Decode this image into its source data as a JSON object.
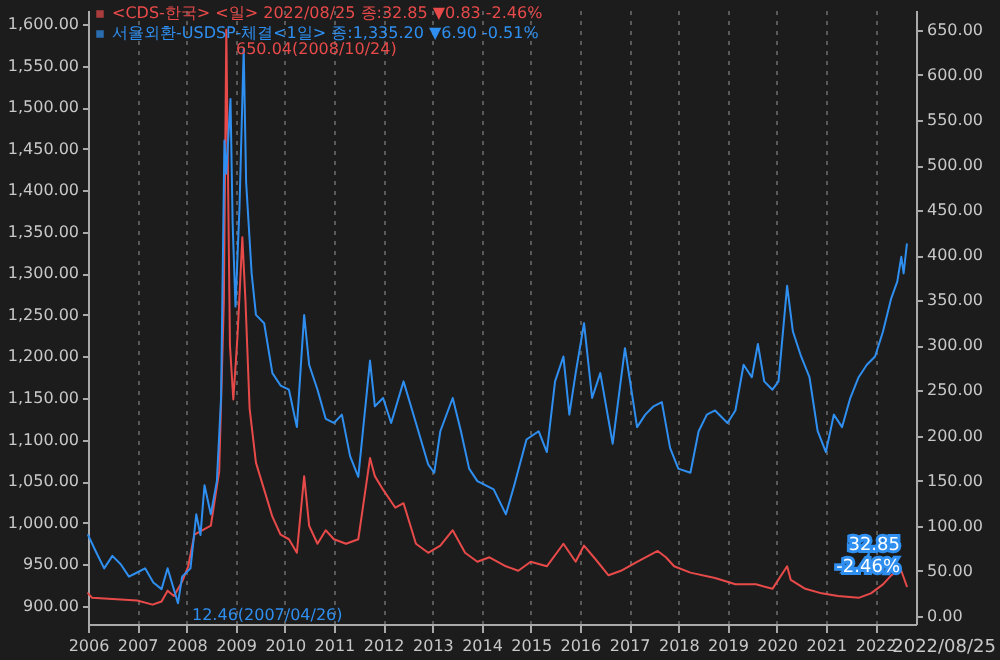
{
  "chart_data": {
    "type": "line",
    "series": [
      {
        "name": "<CDS-한국> <일> 2022/08/25 종:32.85 ▼0.83 -2.46%",
        "color": "#e84a4a",
        "axis": "y2",
        "x": [
          "2006-01-02",
          "2006-02-01",
          "2006-06-01",
          "2006-10-01",
          "2007-01-01",
          "2007-04-26",
          "2007-07-01",
          "2007-08-15",
          "2007-10-01",
          "2007-12-01",
          "2008-01-15",
          "2008-03-01",
          "2008-05-01",
          "2008-07-01",
          "2008-09-01",
          "2008-10-06",
          "2008-10-24",
          "2008-11-20",
          "2008-12-15",
          "2009-01-15",
          "2009-02-20",
          "2009-03-15",
          "2009-04-15",
          "2009-06-01",
          "2009-08-01",
          "2009-10-01",
          "2009-12-01",
          "2010-02-01",
          "2010-04-01",
          "2010-05-25",
          "2010-07-01",
          "2010-09-01",
          "2010-11-01",
          "2011-01-01",
          "2011-04-01",
          "2011-07-01",
          "2011-09-26",
          "2011-11-01",
          "2012-01-01",
          "2012-04-01",
          "2012-06-01",
          "2012-09-01",
          "2012-12-01",
          "2013-03-01",
          "2013-06-01",
          "2013-09-01",
          "2013-12-01",
          "2014-03-01",
          "2014-07-01",
          "2014-10-01",
          "2015-01-01",
          "2015-05-01",
          "2015-09-01",
          "2015-12-01",
          "2016-02-01",
          "2016-05-01",
          "2016-08-01",
          "2016-11-01",
          "2017-03-01",
          "2017-08-01",
          "2017-10-01",
          "2017-12-01",
          "2018-04-01",
          "2018-10-01",
          "2019-03-01",
          "2019-08-01",
          "2019-12-01",
          "2020-03-19",
          "2020-04-15",
          "2020-08-01",
          "2020-12-01",
          "2021-04-01",
          "2021-09-01",
          "2021-12-01",
          "2022-03-01",
          "2022-05-01",
          "2022-07-10",
          "2022-08-25"
        ],
        "values": [
          25,
          20,
          19,
          18,
          17,
          12.46,
          16,
          28,
          22,
          38,
          55,
          90,
          95,
          100,
          160,
          350,
          650.04,
          300,
          240,
          310,
          420,
          350,
          230,
          170,
          140,
          110,
          90,
          85,
          70,
          155,
          100,
          80,
          95,
          85,
          80,
          85,
          175,
          155,
          140,
          120,
          125,
          80,
          70,
          78,
          95,
          70,
          60,
          65,
          55,
          50,
          60,
          55,
          80,
          60,
          78,
          62,
          45,
          50,
          60,
          72,
          65,
          55,
          48,
          42,
          35,
          35,
          30,
          55,
          40,
          30,
          25,
          22,
          20,
          25,
          35,
          45,
          52,
          32.85
        ]
      },
      {
        "name": "서울외환-USDSP-체결<1일> 종:1,335.20 ▼6.90 -0.51%",
        "color": "#2f8ff0",
        "axis": "y",
        "x": [
          "2006-01-02",
          "2006-03-01",
          "2006-05-01",
          "2006-07-01",
          "2006-09-01",
          "2006-11-01",
          "2007-01-01",
          "2007-03-01",
          "2007-05-01",
          "2007-07-01",
          "2007-08-15",
          "2007-10-31",
          "2007-12-01",
          "2008-02-01",
          "2008-03-15",
          "2008-04-15",
          "2008-05-15",
          "2008-07-01",
          "2008-08-15",
          "2008-09-15",
          "2008-10-10",
          "2008-10-24",
          "2008-11-24",
          "2008-12-10",
          "2008-12-31",
          "2009-01-30",
          "2009-03-02",
          "2009-03-20",
          "2009-04-30",
          "2009-06-01",
          "2009-08-01",
          "2009-10-01",
          "2009-12-01",
          "2010-02-01",
          "2010-04-01",
          "2010-05-25",
          "2010-07-01",
          "2010-09-01",
          "2010-11-01",
          "2011-01-01",
          "2011-03-01",
          "2011-05-01",
          "2011-07-01",
          "2011-09-26",
          "2011-11-01",
          "2012-01-01",
          "2012-03-01",
          "2012-06-01",
          "2012-09-01",
          "2012-12-01",
          "2013-01-15",
          "2013-03-01",
          "2013-06-01",
          "2013-08-01",
          "2013-10-01",
          "2013-12-01",
          "2014-04-01",
          "2014-07-01",
          "2014-09-01",
          "2014-12-01",
          "2015-03-01",
          "2015-05-01",
          "2015-07-01",
          "2015-09-01",
          "2015-10-15",
          "2015-12-01",
          "2016-02-01",
          "2016-04-01",
          "2016-06-01",
          "2016-09-01",
          "2016-12-01",
          "2017-03-01",
          "2017-05-01",
          "2017-07-01",
          "2017-09-01",
          "2017-11-01",
          "2018-01-01",
          "2018-04-01",
          "2018-06-01",
          "2018-08-01",
          "2018-10-01",
          "2019-01-01",
          "2019-03-01",
          "2019-05-01",
          "2019-07-01",
          "2019-08-15",
          "2019-10-01",
          "2019-12-01",
          "2020-01-15",
          "2020-03-19",
          "2020-05-01",
          "2020-07-01",
          "2020-09-01",
          "2020-11-01",
          "2021-01-01",
          "2021-03-01",
          "2021-05-01",
          "2021-07-01",
          "2021-09-01",
          "2021-11-01",
          "2022-01-01",
          "2022-03-01",
          "2022-05-01",
          "2022-06-15",
          "2022-07-15",
          "2022-08-01",
          "2022-08-25"
        ],
        "values": [
          985,
          965,
          945,
          960,
          950,
          935,
          940,
          945,
          928,
          920,
          945,
          903,
          935,
          945,
          1010,
          985,
          1045,
          1010,
          1050,
          1150,
          1460,
          1420,
          1510,
          1360,
          1260,
          1380,
          1570,
          1410,
          1300,
          1250,
          1240,
          1180,
          1165,
          1160,
          1115,
          1250,
          1190,
          1160,
          1125,
          1120,
          1130,
          1080,
          1055,
          1195,
          1140,
          1150,
          1120,
          1170,
          1120,
          1070,
          1060,
          1110,
          1150,
          1110,
          1065,
          1050,
          1040,
          1010,
          1045,
          1100,
          1110,
          1085,
          1170,
          1200,
          1130,
          1180,
          1240,
          1150,
          1180,
          1095,
          1210,
          1115,
          1130,
          1140,
          1145,
          1090,
          1065,
          1060,
          1110,
          1130,
          1135,
          1120,
          1135,
          1190,
          1175,
          1215,
          1170,
          1160,
          1170,
          1285,
          1230,
          1200,
          1175,
          1110,
          1085,
          1130,
          1115,
          1150,
          1175,
          1190,
          1200,
          1230,
          1270,
          1290,
          1320,
          1300,
          1335
        ]
      }
    ],
    "xlim": [
      "2006-01-01",
      "2022-11-01"
    ],
    "xticks": [
      {
        "value": "2006-01-01",
        "label": "2006"
      },
      {
        "value": "2007-01-01",
        "label": "2007"
      },
      {
        "value": "2008-01-01",
        "label": "2008"
      },
      {
        "value": "2009-01-01",
        "label": "2009"
      },
      {
        "value": "2010-01-01",
        "label": "2010"
      },
      {
        "value": "2011-01-01",
        "label": "2011"
      },
      {
        "value": "2012-01-01",
        "label": "2012"
      },
      {
        "value": "2013-01-01",
        "label": "2013"
      },
      {
        "value": "2014-01-01",
        "label": "2014"
      },
      {
        "value": "2015-01-01",
        "label": "2015"
      },
      {
        "value": "2016-01-01",
        "label": "2016"
      },
      {
        "value": "2017-01-01",
        "label": "2017"
      },
      {
        "value": "2018-01-01",
        "label": "2018"
      },
      {
        "value": "2019-01-01",
        "label": "2019"
      },
      {
        "value": "2020-01-01",
        "label": "2020"
      },
      {
        "value": "2021-01-01",
        "label": "2021"
      },
      {
        "value": "2022-01-01",
        "label": "2022"
      }
    ],
    "ylim": [
      878,
      1617
    ],
    "yticks": [
      {
        "value": 900,
        "label": "900.00"
      },
      {
        "value": 950,
        "label": "950.00"
      },
      {
        "value": 1000,
        "label": "1,000.00"
      },
      {
        "value": 1050,
        "label": "1,050.00"
      },
      {
        "value": 1100,
        "label": "1,100.00"
      },
      {
        "value": 1150,
        "label": "1,150.00"
      },
      {
        "value": 1200,
        "label": "1,200.00"
      },
      {
        "value": 1250,
        "label": "1,250.00"
      },
      {
        "value": 1300,
        "label": "1,300.00"
      },
      {
        "value": 1350,
        "label": "1,350.00"
      },
      {
        "value": 1400,
        "label": "1,400.00"
      },
      {
        "value": 1450,
        "label": "1,450.00"
      },
      {
        "value": 1500,
        "label": "1,500.00"
      },
      {
        "value": 1550,
        "label": "1,550.00"
      },
      {
        "value": 1600,
        "label": "1,600.00"
      }
    ],
    "y2lim": [
      -9,
      672
    ],
    "y2ticks": [
      {
        "value": 0,
        "label": "0.00"
      },
      {
        "value": 50,
        "label": "50.00"
      },
      {
        "value": 100,
        "label": "100.00"
      },
      {
        "value": 150,
        "label": "150.00"
      },
      {
        "value": 200,
        "label": "200.00"
      },
      {
        "value": 250,
        "label": "250.00"
      },
      {
        "value": 300,
        "label": "300.00"
      },
      {
        "value": 350,
        "label": "350.00"
      },
      {
        "value": 400,
        "label": "400.00"
      },
      {
        "value": 450,
        "label": "450.00"
      },
      {
        "value": 500,
        "label": "500.00"
      },
      {
        "value": 550,
        "label": "550.00"
      },
      {
        "value": 600,
        "label": "600.00"
      },
      {
        "value": 650,
        "label": "650.00"
      }
    ],
    "annotations": [
      "650.04(2008/10/24)",
      "12.46(2007/04/26)",
      "32.85 -2.46%",
      "2022/08/25"
    ],
    "grid": "x",
    "legend": "top left",
    "marker": "none",
    "line_style": "solid"
  }
}
